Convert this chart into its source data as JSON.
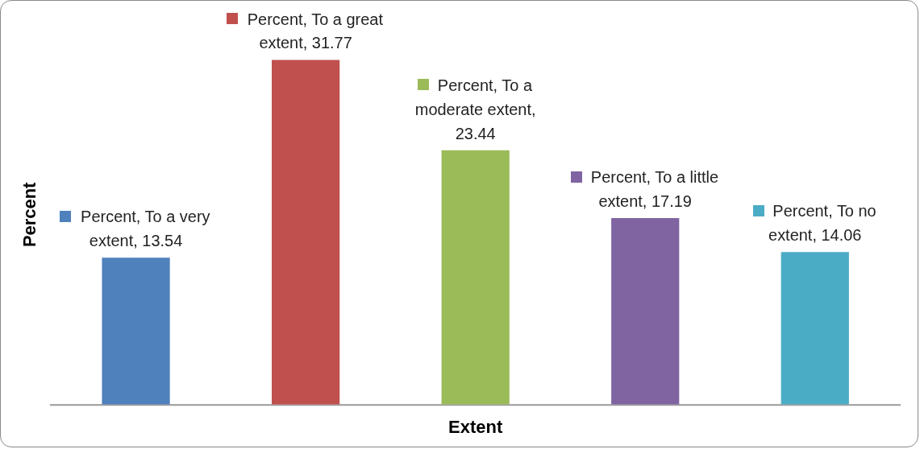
{
  "chart_data": {
    "type": "bar",
    "xlabel": "Extent",
    "ylabel": "Percent",
    "categories": [
      null,
      null,
      null,
      null,
      null
    ],
    "values": [
      13.54,
      31.77,
      23.44,
      17.19,
      14.06
    ],
    "colors": [
      "#4f81bd",
      "#c0504d",
      "#9bbb59",
      "#8064a2",
      "#4bacc6"
    ],
    "value_labels": [
      "Percent, To a very extent, 13.54",
      "Percent, To a great extent, 31.77",
      "Percent, To a moderate extent, 23.44",
      "Percent, To a little extent, 17.19",
      "Percent, To no extent, 14.06"
    ],
    "tick_labels": false
  }
}
